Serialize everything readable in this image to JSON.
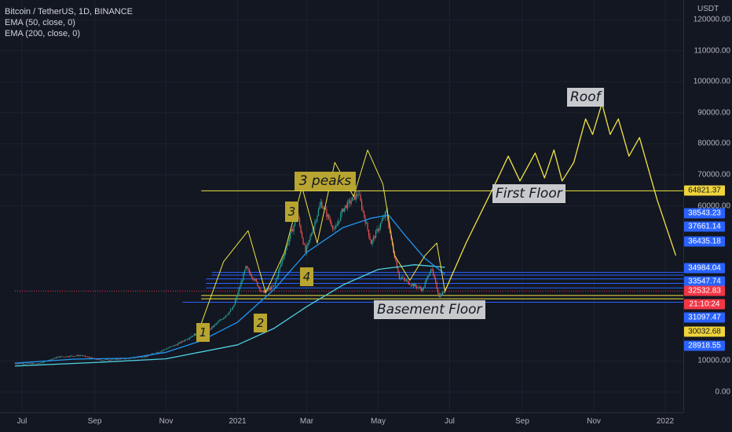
{
  "legend": {
    "symbol": "Bitcoin / TetherUS, 1D, BINANCE",
    "ema50": "EMA (50, close, 0)",
    "ema200": "EMA (200, close, 0)"
  },
  "currency": "USDT",
  "annotations": {
    "roof": "Roof",
    "first_floor": "First Floor",
    "three_peaks": "3 peaks",
    "basement_floor": "Basement Floor",
    "num1": "1",
    "num2": "2",
    "num3": "3",
    "num4": "4"
  },
  "badges": [
    {
      "text": "64821.37",
      "color": "#f0d43a",
      "fg": "#131722",
      "y": 64821.37
    },
    {
      "text": "38543.23",
      "color": "#2962ff",
      "fg": "#ffffff",
      "y": 57500
    },
    {
      "text": "37661.14",
      "color": "#2962ff",
      "fg": "#ffffff",
      "y": 53200
    },
    {
      "text": "36435.18",
      "color": "#2962ff",
      "fg": "#ffffff",
      "y": 48600
    },
    {
      "text": "34984.04",
      "color": "#2962ff",
      "fg": "#ffffff",
      "y": 40000
    },
    {
      "text": "33547.74",
      "color": "#2962ff",
      "fg": "#ffffff",
      "y": 35600
    },
    {
      "text": "32532.83",
      "color": "#f23645",
      "fg": "#ffffff",
      "y": 32532.83
    },
    {
      "text": "21:10:24",
      "color": "#f23645",
      "fg": "#ffffff",
      "y": 28200
    },
    {
      "text": "31097.47",
      "color": "#2962ff",
      "fg": "#ffffff",
      "y": 24000
    },
    {
      "text": "30032.68",
      "color": "#f0d43a",
      "fg": "#131722",
      "y": 19500
    },
    {
      "text": "28918.55",
      "color": "#2962ff",
      "fg": "#ffffff",
      "y": 14800
    }
  ],
  "colors": {
    "background": "#131722",
    "candle_up": "#26a69a",
    "candle_down": "#ef5350",
    "ema50": "#2196f3",
    "ema200": "#4dd0e1",
    "drawing": "#f0e442",
    "hline": "#2962ff"
  },
  "chart_data": {
    "type": "line",
    "title": "Bitcoin / TetherUS, 1D, BINANCE",
    "ylabel": "USDT",
    "ylim": [
      -2000,
      124000
    ],
    "y_ticks": [
      0,
      10000,
      60000,
      70000,
      80000,
      90000,
      100000,
      110000,
      120000
    ],
    "y_tick_labels": [
      "0.00",
      "10000.00",
      "60000.00",
      "70000.00",
      "80000.00",
      "90000.00",
      "100000.00",
      "110000.00",
      "120000.00"
    ],
    "x_ticks": [
      {
        "label": "Jul",
        "date": "2020-07-01"
      },
      {
        "label": "Sep",
        "date": "2020-09-01"
      },
      {
        "label": "Nov",
        "date": "2020-11-01"
      },
      {
        "label": "2021",
        "date": "2021-01-01"
      },
      {
        "label": "Mar",
        "date": "2021-03-01"
      },
      {
        "label": "May",
        "date": "2021-05-01"
      },
      {
        "label": "Jul",
        "date": "2021-07-01"
      },
      {
        "label": "Sep",
        "date": "2021-09-01"
      },
      {
        "label": "Nov",
        "date": "2021-11-01"
      },
      {
        "label": "2022",
        "date": "2022-01-01"
      }
    ],
    "grid": true,
    "price_series": {
      "name": "Bitcoin / TetherUS",
      "points": [
        [
          "2020-06-25",
          9200
        ],
        [
          "2020-07-15",
          9150
        ],
        [
          "2020-08-01",
          11300
        ],
        [
          "2020-08-20",
          11800
        ],
        [
          "2020-09-05",
          10300
        ],
        [
          "2020-09-25",
          10700
        ],
        [
          "2020-10-15",
          11500
        ],
        [
          "2020-10-28",
          13300
        ],
        [
          "2020-11-10",
          15300
        ],
        [
          "2020-11-25",
          18500
        ],
        [
          "2020-12-05",
          19200
        ],
        [
          "2020-12-17",
          23000
        ],
        [
          "2020-12-28",
          27000
        ],
        [
          "2021-01-08",
          40000
        ],
        [
          "2021-01-15",
          36500
        ],
        [
          "2021-01-22",
          32000
        ],
        [
          "2021-02-01",
          34000
        ],
        [
          "2021-02-10",
          45000
        ],
        [
          "2021-02-21",
          57000
        ],
        [
          "2021-02-28",
          45000
        ],
        [
          "2021-03-13",
          61000
        ],
        [
          "2021-03-25",
          52000
        ],
        [
          "2021-04-01",
          59000
        ],
        [
          "2021-04-14",
          64000
        ],
        [
          "2021-04-25",
          48000
        ],
        [
          "2021-05-08",
          58000
        ],
        [
          "2021-05-12",
          49000
        ],
        [
          "2021-05-19",
          37000
        ],
        [
          "2021-05-28",
          35000
        ],
        [
          "2021-06-08",
          33000
        ],
        [
          "2021-06-15",
          40000
        ],
        [
          "2021-06-22",
          31000
        ],
        [
          "2021-06-27",
          32532.83
        ]
      ]
    },
    "ema50": {
      "name": "EMA (50, close, 0)",
      "points": [
        [
          "2020-06-25",
          9300
        ],
        [
          "2020-08-15",
          10600
        ],
        [
          "2020-10-01",
          10900
        ],
        [
          "2020-11-01",
          12800
        ],
        [
          "2020-12-01",
          16500
        ],
        [
          "2021-01-01",
          22500
        ],
        [
          "2021-02-01",
          33000
        ],
        [
          "2021-03-01",
          45000
        ],
        [
          "2021-04-01",
          53000
        ],
        [
          "2021-04-25",
          56000
        ],
        [
          "2021-05-10",
          57000
        ],
        [
          "2021-05-25",
          50000
        ],
        [
          "2021-06-10",
          43000
        ],
        [
          "2021-06-27",
          38000
        ]
      ]
    },
    "ema200": {
      "name": "EMA (200, close, 0)",
      "points": [
        [
          "2020-06-25",
          8400
        ],
        [
          "2020-09-01",
          9500
        ],
        [
          "2020-11-01",
          10700
        ],
        [
          "2021-01-01",
          15200
        ],
        [
          "2021-02-01",
          20500
        ],
        [
          "2021-03-01",
          27500
        ],
        [
          "2021-04-01",
          34500
        ],
        [
          "2021-05-01",
          39500
        ],
        [
          "2021-06-01",
          41000
        ],
        [
          "2021-06-27",
          40200
        ]
      ]
    },
    "projection": {
      "name": "drawn projection",
      "points": [
        [
          "2021-06-27",
          32500
        ],
        [
          "2021-07-15",
          48000
        ],
        [
          "2021-08-10",
          68000
        ],
        [
          "2021-08-20",
          76000
        ],
        [
          "2021-08-30",
          68000
        ],
        [
          "2021-09-12",
          77000
        ],
        [
          "2021-09-20",
          69000
        ],
        [
          "2021-09-28",
          78000
        ],
        [
          "2021-10-05",
          68000
        ],
        [
          "2021-10-15",
          74000
        ],
        [
          "2021-10-25",
          88000
        ],
        [
          "2021-10-31",
          83000
        ],
        [
          "2021-11-08",
          93000
        ],
        [
          "2021-11-15",
          83000
        ],
        [
          "2021-11-22",
          88000
        ],
        [
          "2021-12-01",
          76000
        ],
        [
          "2021-12-10",
          82000
        ],
        [
          "2021-12-25",
          62000
        ],
        [
          "2022-01-10",
          44000
        ]
      ]
    },
    "horizontal_lines": [
      {
        "value": 64821.37,
        "from": "2020-12-01",
        "to": "2022-01-31",
        "color": "#f0e442"
      },
      {
        "value": 38543.23,
        "from": "2020-12-10",
        "to": "2022-01-31",
        "color": "#2962ff"
      },
      {
        "value": 37661.14,
        "from": "2020-12-10",
        "to": "2022-01-31",
        "color": "#2962ff"
      },
      {
        "value": 36435.18,
        "from": "2020-12-05",
        "to": "2022-01-31",
        "color": "#2962ff"
      },
      {
        "value": 34984.04,
        "from": "2020-12-05",
        "to": "2022-01-31",
        "color": "#2962ff"
      },
      {
        "value": 33547.74,
        "from": "2020-12-05",
        "to": "2022-01-31",
        "color": "#2962ff"
      },
      {
        "value": 32532.83,
        "from": "2020-06-25",
        "to": "2022-01-31",
        "color": "#f23645"
      },
      {
        "value": 31097.47,
        "from": "2020-12-01",
        "to": "2022-01-31",
        "color": "#f0e442"
      },
      {
        "value": 30032.68,
        "from": "2020-12-01",
        "to": "2022-01-31",
        "color": "#f0e442"
      },
      {
        "value": 28918.55,
        "from": "2020-11-15",
        "to": "2022-01-31",
        "color": "#2962ff"
      }
    ]
  }
}
